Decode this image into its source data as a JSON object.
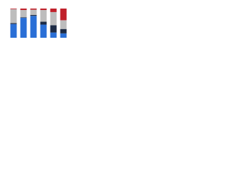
{
  "chart_data": {
    "type": "stacked-bar",
    "categories": [
      null,
      null,
      null,
      null,
      null,
      null
    ],
    "ylim": [
      0,
      100
    ],
    "series": [
      {
        "color": "#2a6fd6",
        "values": [
          47,
          68,
          75,
          45,
          18,
          15
        ]
      },
      {
        "color": "#1c2b45",
        "values": [
          3,
          2,
          3,
          10,
          25,
          15
        ]
      },
      {
        "color": "#bdbdbd",
        "values": [
          48,
          25,
          18,
          40,
          45,
          30
        ]
      },
      {
        "color": "#c0202a",
        "values": [
          2,
          5,
          4,
          5,
          12,
          40
        ]
      }
    ]
  }
}
